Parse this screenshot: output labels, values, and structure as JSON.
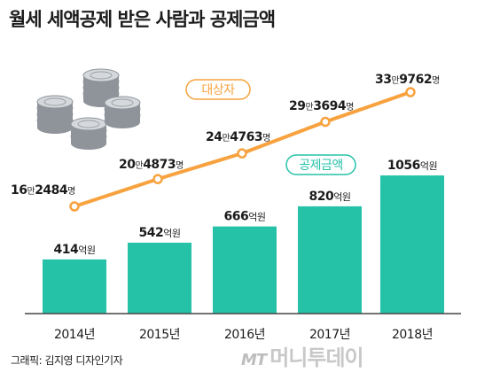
{
  "title": "월세 세액공제 받은 사람과 공제금액",
  "credit": "그래픽: 김지영 디자인기자",
  "watermark": {
    "mt": "MT",
    "brand": "머니투데이"
  },
  "colors": {
    "bar": "#26c2a8",
    "line": "#f7a23e",
    "text": "#1c1c1c",
    "axis": "#444444"
  },
  "illustration": {
    "name": "coin-stack-icon"
  },
  "chart_data": [
    {
      "type": "bar",
      "categories": [
        "2014년",
        "2015년",
        "2016년",
        "2017년",
        "2018년"
      ],
      "series": [
        {
          "name": "공제금액",
          "values": [
            414,
            542,
            666,
            820,
            1056
          ],
          "labels": [
            {
              "num": "414",
              "unit": "억원"
            },
            {
              "num": "542",
              "unit": "억원"
            },
            {
              "num": "666",
              "unit": "억원"
            },
            {
              "num": "820",
              "unit": "억원"
            },
            {
              "num": "1056",
              "unit": "억원"
            }
          ]
        }
      ],
      "ylim": [
        0,
        1500
      ]
    },
    {
      "type": "line",
      "categories": [
        "2014년",
        "2015년",
        "2016년",
        "2017년",
        "2018년"
      ],
      "series": [
        {
          "name": "대상자",
          "values": [
            162484,
            204873,
            244763,
            293694,
            339762
          ],
          "labels": [
            {
              "a": "16",
              "b": "만",
              "c": "2484",
              "d": "명"
            },
            {
              "a": "20",
              "b": "만",
              "c": "4873",
              "d": "명"
            },
            {
              "a": "24",
              "b": "만",
              "c": "4763",
              "d": "명"
            },
            {
              "a": "29",
              "b": "만",
              "c": "3694",
              "d": "명"
            },
            {
              "a": "33",
              "b": "만",
              "c": "9762",
              "d": "명"
            }
          ]
        }
      ]
    }
  ]
}
